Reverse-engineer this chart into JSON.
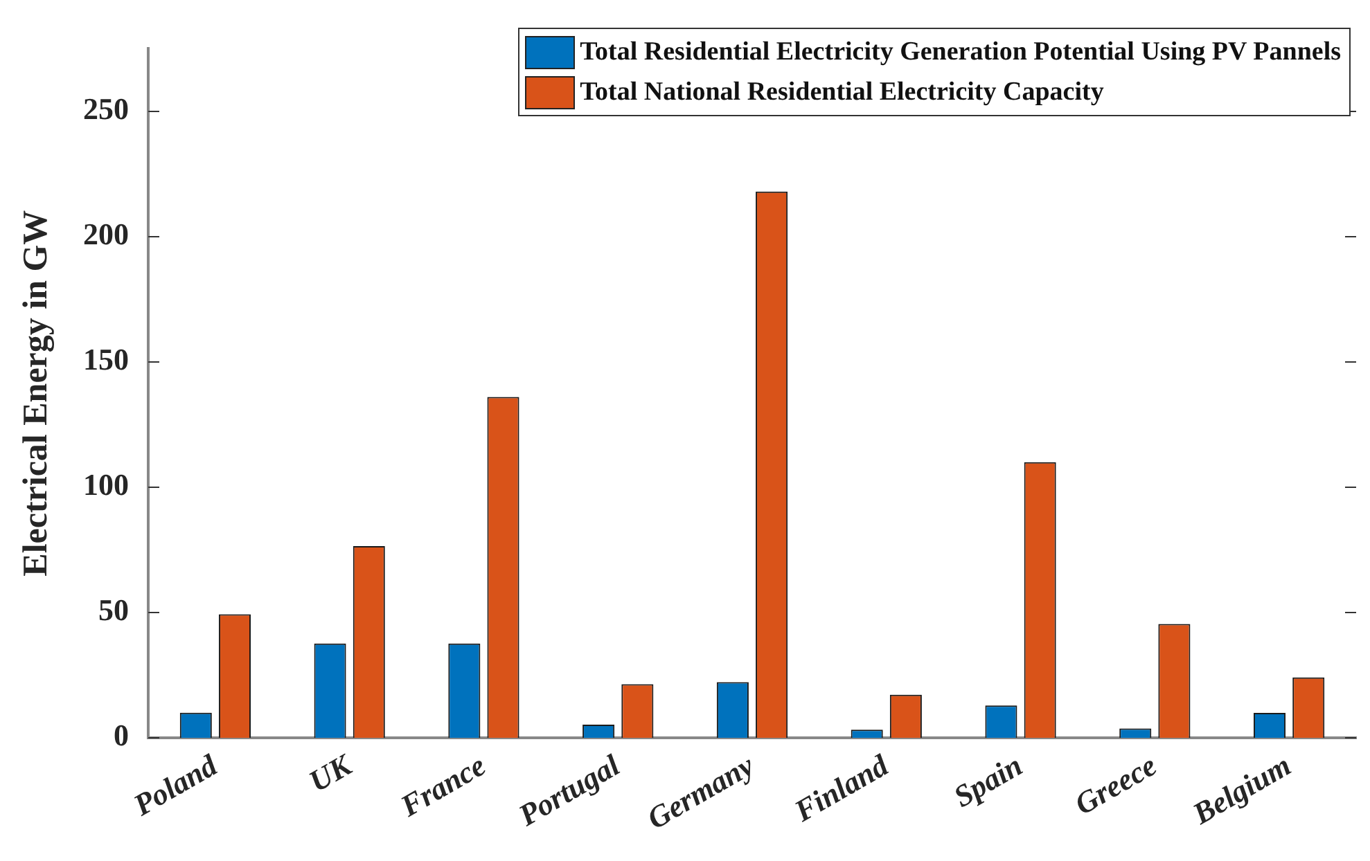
{
  "chart_data": {
    "type": "bar",
    "ylabel": "Electrical Energy in GW",
    "categories": [
      "Poland",
      "UK",
      "France",
      "Portugal",
      "Germany",
      "Finland",
      "Spain",
      "Greece",
      "Belgium"
    ],
    "series": [
      {
        "name": "Total Residential Electricity Generation Potential Using PV Pannels",
        "color": "#0072bd",
        "values": [
          10,
          37.6,
          37.6,
          5.2,
          22.2,
          3.2,
          12.9,
          3.7,
          9.9
        ]
      },
      {
        "name": "Total National Residential Electricity Capacity",
        "color": "#d95319",
        "values": [
          49.3,
          76.5,
          136,
          21.4,
          218,
          17.2,
          110,
          45.4,
          24.1
        ]
      }
    ],
    "ylim": [
      0,
      275
    ],
    "yticks": [
      0,
      50,
      100,
      150,
      200,
      250
    ],
    "grid": false,
    "legend": "top right"
  }
}
